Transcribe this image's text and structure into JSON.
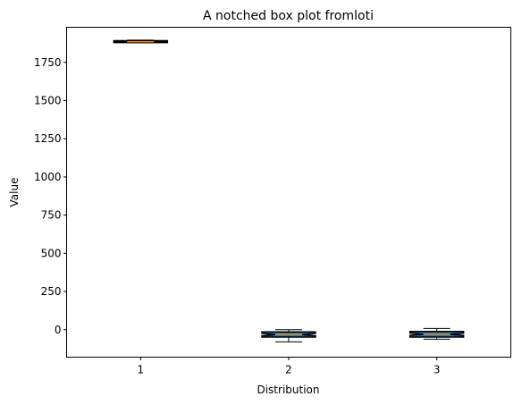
{
  "chart_data": {
    "type": "box",
    "title": "A notched box plot fromloti",
    "xlabel": "Distribution",
    "ylabel": "Value",
    "ylim": [
      -180,
      1980
    ],
    "xlim": [
      0.5,
      3.5
    ],
    "categories": [
      "1",
      "2",
      "3"
    ],
    "yticks": [
      0,
      250,
      500,
      750,
      1000,
      1250,
      1500,
      1750
    ],
    "grid": false,
    "boxes": [
      {
        "x": 1,
        "whisker_low": 1878,
        "q1": 1880,
        "median": 1885,
        "q3": 1892,
        "whisker_high": 1896,
        "notch_low": 1882,
        "notch_high": 1889,
        "fill": "#1f77b4"
      },
      {
        "x": 2,
        "whisker_low": -80,
        "q1": -48,
        "median": -32,
        "q3": -15,
        "whisker_high": 0,
        "notch_low": -40,
        "notch_high": -24,
        "fill": "#1f77b4"
      },
      {
        "x": 3,
        "whisker_low": -62,
        "q1": -48,
        "median": -30,
        "q3": -12,
        "whisker_high": 8,
        "notch_low": -38,
        "notch_high": -22,
        "fill": "#1f77b4"
      }
    ],
    "colors": {
      "box_edge": "#000000",
      "median": "#ff7f0e",
      "axes": "#000000"
    }
  }
}
